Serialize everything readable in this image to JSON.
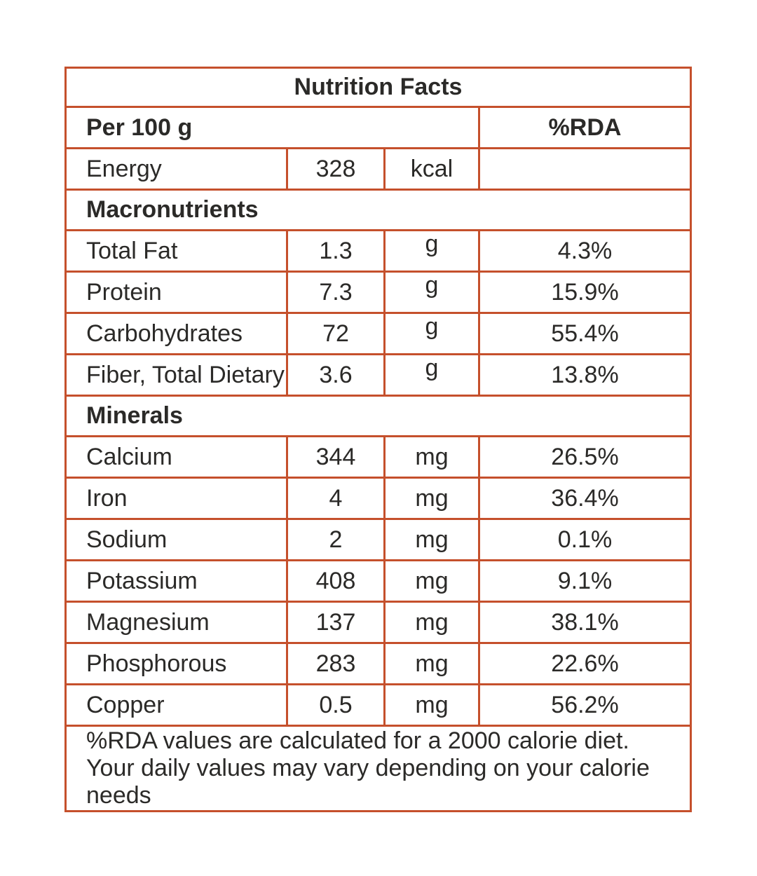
{
  "colors": {
    "border": "#c5502c",
    "text": "#2b2a28",
    "background": "#ffffff"
  },
  "table": {
    "title": "Nutrition Facts",
    "header": {
      "serving": "Per 100 g",
      "rda": "%RDA"
    },
    "energy": {
      "name": "Energy",
      "value": "328",
      "unit": "kcal",
      "rda": ""
    },
    "sections": [
      {
        "label": "Macronutrients",
        "rows": [
          {
            "name": "Total Fat",
            "value": "1.3",
            "unit": "g",
            "rda": "4.3%"
          },
          {
            "name": "Protein",
            "value": "7.3",
            "unit": "g",
            "rda": "15.9%"
          },
          {
            "name": "Carbohydrates",
            "value": "72",
            "unit": "g",
            "rda": "55.4%"
          },
          {
            "name": "Fiber, Total Dietary",
            "value": "3.6",
            "unit": "g",
            "rda": "13.8%"
          }
        ]
      },
      {
        "label": "Minerals",
        "rows": [
          {
            "name": "Calcium",
            "value": "344",
            "unit": "mg",
            "rda": "26.5%"
          },
          {
            "name": "Iron",
            "value": "4",
            "unit": "mg",
            "rda": "36.4%"
          },
          {
            "name": "Sodium",
            "value": "2",
            "unit": "mg",
            "rda": "0.1%"
          },
          {
            "name": "Potassium",
            "value": "408",
            "unit": "mg",
            "rda": "9.1%"
          },
          {
            "name": "Magnesium",
            "value": "137",
            "unit": "mg",
            "rda": "38.1%"
          },
          {
            "name": "Phosphorous",
            "value": "283",
            "unit": "mg",
            "rda": "22.6%"
          },
          {
            "name": "Copper",
            "value": "0.5",
            "unit": "mg",
            "rda": "56.2%"
          }
        ]
      }
    ],
    "footnote": "%RDA values are calculated for a 2000 calorie diet. Your daily values may vary depending on your calorie needs"
  }
}
